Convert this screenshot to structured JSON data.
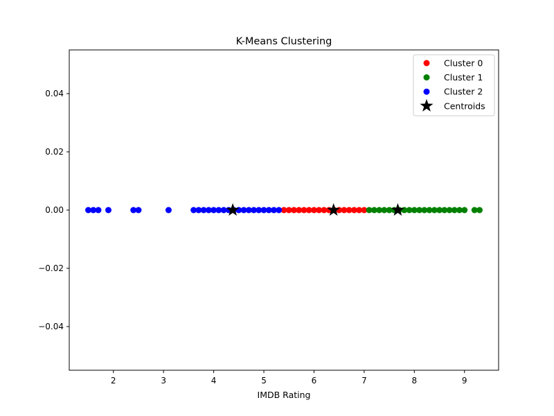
{
  "chart_data": {
    "type": "scatter",
    "title": "K-Means Clustering",
    "xlabel": "IMDB Rating",
    "ylabel": "",
    "xlim": [
      1.12,
      9.68
    ],
    "ylim": [
      -0.055,
      0.055
    ],
    "xticks": [
      2,
      3,
      4,
      5,
      6,
      7,
      8,
      9
    ],
    "yticks": [
      0.04,
      0.02,
      0.0,
      -0.02,
      -0.04
    ],
    "ytick_labels": [
      "0.04",
      "0.02",
      "0.00",
      "−0.02",
      "−0.04"
    ],
    "grid": false,
    "legend_position": "top-right",
    "series": [
      {
        "name": "Cluster 0",
        "color": "#ff0000",
        "marker": "circle",
        "x": [
          5.4,
          5.5,
          5.6,
          5.7,
          5.8,
          5.9,
          6.0,
          6.1,
          6.2,
          6.3,
          6.4,
          6.5,
          6.6,
          6.7,
          6.8,
          6.9,
          7.0
        ],
        "y": [
          0,
          0,
          0,
          0,
          0,
          0,
          0,
          0,
          0,
          0,
          0,
          0,
          0,
          0,
          0,
          0,
          0
        ]
      },
      {
        "name": "Cluster 1",
        "color": "#008000",
        "marker": "circle",
        "x": [
          7.1,
          7.2,
          7.3,
          7.4,
          7.5,
          7.6,
          7.7,
          7.8,
          7.9,
          8.0,
          8.1,
          8.2,
          8.3,
          8.4,
          8.5,
          8.6,
          8.7,
          8.8,
          8.9,
          9.0,
          9.2,
          9.3
        ],
        "y": [
          0,
          0,
          0,
          0,
          0,
          0,
          0,
          0,
          0,
          0,
          0,
          0,
          0,
          0,
          0,
          0,
          0,
          0,
          0,
          0,
          0,
          0
        ]
      },
      {
        "name": "Cluster 2",
        "color": "#0000ff",
        "marker": "circle",
        "x": [
          1.5,
          1.6,
          1.7,
          1.9,
          2.4,
          2.5,
          3.1,
          3.6,
          3.7,
          3.8,
          3.9,
          4.0,
          4.1,
          4.2,
          4.3,
          4.4,
          4.5,
          4.6,
          4.7,
          4.8,
          4.9,
          5.0,
          5.1,
          5.2,
          5.3
        ],
        "y": [
          0,
          0,
          0,
          0,
          0,
          0,
          0,
          0,
          0,
          0,
          0,
          0,
          0,
          0,
          0,
          0,
          0,
          0,
          0,
          0,
          0,
          0,
          0,
          0,
          0
        ]
      },
      {
        "name": "Centroids",
        "color": "#000000",
        "marker": "star",
        "x": [
          4.38,
          6.39,
          7.67
        ],
        "y": [
          0,
          0,
          0
        ]
      }
    ]
  }
}
